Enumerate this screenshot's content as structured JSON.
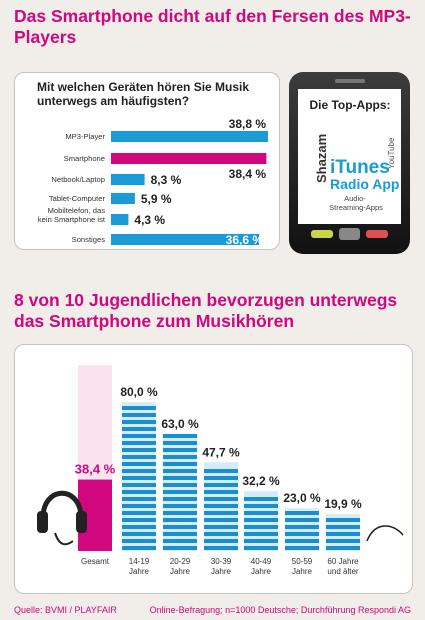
{
  "section1": {
    "title": "Das Smartphone dicht auf den Fersen des MP3-Players",
    "question": "Mit welchen Geräten hören Sie Musik unterwegs am häufigsten?"
  },
  "phone": {
    "heading": "Die Top-Apps:",
    "app_shazam": "Shazam",
    "app_youtube": "YouTube",
    "app_itunes": "iTunes",
    "app_radio": "Radio App",
    "app_streaming": "Audio-Streaming-Apps"
  },
  "section2": {
    "title": "8 von 10 Jugendlichen bevorzugen unterwegs das Smartphone zum Musikhören"
  },
  "footer": {
    "source": "Quelle: BVMI / PLAYFAIR",
    "note": "Online-Befragung; n=1000 Deutsche; Durchführung Respondi AG"
  },
  "chart_data": [
    {
      "type": "bar",
      "orientation": "horizontal",
      "categories": [
        "MP3-Player",
        "Smartphone",
        "Netbook/Laptop",
        "Tablet-Computer",
        "Mobiltelefon, das kein Smartphone ist",
        "Sonstiges"
      ],
      "values": [
        38.8,
        38.4,
        8.3,
        5.9,
        4.3,
        36.6
      ],
      "labels": [
        "38,8 %",
        "38,4 %",
        "8,3 %",
        "5,9 %",
        "4,3 %",
        "36,6 %"
      ],
      "colors": [
        "#1a9bd7",
        "#d0077f",
        "#1a9bd7",
        "#1a9bd7",
        "#1a9bd7",
        "#1a9bd7"
      ],
      "xlim": [
        0,
        38.8
      ]
    },
    {
      "type": "bar",
      "categories": [
        "Gesamt",
        "14-19 Jahre",
        "20-29 Jahre",
        "30-39 Jahre",
        "40-49 Jahre",
        "50-59 Jahre",
        "60 Jahre und älter"
      ],
      "values": [
        38.4,
        80.0,
        63.0,
        47.7,
        32.2,
        23.0,
        19.9
      ],
      "labels": [
        "38,4 %",
        "80,0 %",
        "63,0 %",
        "47,7 %",
        "32,2 %",
        "23,0 %",
        "19,9 %"
      ],
      "colors": [
        "#d0077f",
        "#1a8fd0",
        "#1a8fd0",
        "#1a8fd0",
        "#1a8fd0",
        "#1a8fd0",
        "#1a8fd0"
      ],
      "ylim": [
        0,
        100
      ]
    }
  ]
}
